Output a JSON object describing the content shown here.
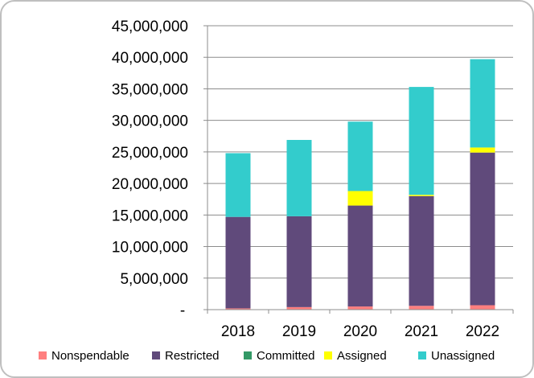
{
  "chart_data": {
    "type": "bar",
    "stacked": true,
    "title": "",
    "xlabel": "",
    "ylabel": "",
    "categories": [
      "2018",
      "2019",
      "2020",
      "2021",
      "2022"
    ],
    "ylim": [
      0,
      45000000
    ],
    "ytick_values": [
      0,
      5000000,
      10000000,
      15000000,
      20000000,
      25000000,
      30000000,
      35000000,
      40000000,
      45000000
    ],
    "ytick_labels": [
      "-",
      "5,000,000",
      "10,000,000",
      "15,000,000",
      "20,000,000",
      "25,000,000",
      "30,000,000",
      "35,000,000",
      "40,000,000",
      "45,000,000"
    ],
    "grid": true,
    "legend_position": "bottom",
    "series": [
      {
        "name": "Nonspendable",
        "color": "#ff7f7f",
        "values": [
          200000,
          400000,
          500000,
          600000,
          700000
        ]
      },
      {
        "name": "Restricted",
        "color": "#604a7b",
        "values": [
          14500000,
          14400000,
          16000000,
          17400000,
          24200000
        ]
      },
      {
        "name": "Committed",
        "color": "#339966",
        "values": [
          0,
          0,
          0,
          0,
          0
        ]
      },
      {
        "name": "Assigned",
        "color": "#ffff00",
        "values": [
          0,
          0,
          2300000,
          200000,
          800000
        ]
      },
      {
        "name": "Unassigned",
        "color": "#33cccc",
        "values": [
          10100000,
          12100000,
          11000000,
          17100000,
          14000000
        ]
      }
    ]
  }
}
